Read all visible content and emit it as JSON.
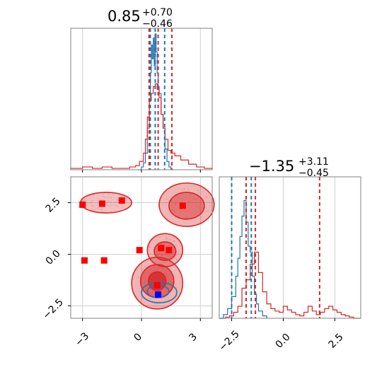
{
  "chart_data": {
    "type": "corner",
    "colors": {
      "red": "#d62728",
      "blue": "#1f77b4",
      "marker_red": "#ff0000",
      "marker_blue": "#0000ff",
      "grid": "#d0d0d0",
      "frame": "#808080"
    },
    "titles": [
      {
        "param": 0,
        "value": "0.85",
        "upper": "+0.70",
        "lower": "−0.46"
      },
      {
        "param": 1,
        "value": "−1.35",
        "upper": "+3.11",
        "lower": "−0.45"
      }
    ],
    "param0": {
      "xlim": [
        -3.6,
        3.6
      ],
      "ticks": [
        -3,
        0,
        3
      ],
      "tick_labels": [
        "−3",
        "0",
        "3"
      ],
      "grid": true,
      "quantiles_red": [
        0.39,
        0.85,
        1.55
      ],
      "quantiles_blue": [
        0.45,
        0.7,
        1.18
      ],
      "hist_red_x": [
        -3.6,
        -3.0,
        -2.5,
        -2.0,
        -1.5,
        -1.0,
        -0.6,
        -0.3,
        -0.1,
        0.1,
        0.2,
        0.3,
        0.4,
        0.5,
        0.6,
        0.7,
        0.8,
        0.9,
        1.0,
        1.1,
        1.2,
        1.35,
        1.5,
        1.7,
        2.0,
        2.4,
        2.8,
        3.2,
        3.6
      ],
      "hist_red_y": [
        0.01,
        0.02,
        0.01,
        0.02,
        0.01,
        0.01,
        0.02,
        0.03,
        0.06,
        0.12,
        0.22,
        0.38,
        0.5,
        0.55,
        0.6,
        0.62,
        0.58,
        0.52,
        0.4,
        0.3,
        0.22,
        0.14,
        0.12,
        0.1,
        0.07,
        0.04,
        0.02,
        0.01,
        0.0
      ],
      "hist_blue_x": [
        -0.2,
        0.0,
        0.1,
        0.2,
        0.3,
        0.4,
        0.45,
        0.5,
        0.55,
        0.6,
        0.65,
        0.7,
        0.75,
        0.8,
        0.85,
        0.9,
        1.0,
        1.1,
        1.2,
        1.3,
        1.4,
        1.5
      ],
      "hist_blue_y": [
        0.0,
        0.02,
        0.05,
        0.12,
        0.3,
        0.5,
        0.7,
        0.9,
        0.8,
        0.95,
        0.75,
        0.98,
        0.85,
        0.7,
        0.6,
        0.55,
        0.4,
        0.3,
        0.15,
        0.06,
        0.02,
        0.0
      ]
    },
    "param1": {
      "ylim": [
        -3.1,
        3.75
      ],
      "ticks": [
        -2.5,
        0.0,
        2.5
      ],
      "y_tick_labels": [
        "−2.5",
        "0.0",
        "2.5"
      ],
      "x_tick_labels": [
        "−2.5",
        "0.0",
        "2.5"
      ],
      "grid": true,
      "quantiles_red": [
        -1.8,
        -1.35,
        1.76
      ],
      "quantiles_blue": [
        -2.5,
        -1.8,
        -1.55
      ],
      "hist_red_x": [
        -3.1,
        -2.8,
        -2.6,
        -2.4,
        -2.2,
        -2.0,
        -1.8,
        -1.6,
        -1.4,
        -1.2,
        -1.0,
        -0.8,
        -0.6,
        -0.4,
        -0.2,
        0.0,
        0.2,
        0.4,
        0.6,
        0.8,
        1.0,
        1.2,
        1.4,
        1.6,
        1.8,
        2.0,
        2.2,
        2.4,
        2.6,
        2.8,
        3.0,
        3.2,
        3.4,
        3.75
      ],
      "hist_red_y": [
        0.0,
        0.01,
        0.02,
        0.05,
        0.1,
        0.25,
        0.32,
        0.45,
        0.55,
        0.38,
        0.22,
        0.12,
        0.08,
        0.06,
        0.05,
        0.1,
        0.07,
        0.05,
        0.03,
        0.02,
        0.05,
        0.1,
        0.06,
        0.03,
        0.05,
        0.08,
        0.1,
        0.07,
        0.05,
        0.03,
        0.02,
        0.01,
        0.0,
        0.0
      ],
      "hist_blue_x": [
        -3.1,
        -2.9,
        -2.7,
        -2.5,
        -2.3,
        -2.2,
        -2.1,
        -2.0,
        -1.9,
        -1.8,
        -1.7,
        -1.6,
        -1.5,
        -1.4,
        -1.3,
        -1.2,
        -1.0,
        -0.8
      ],
      "hist_blue_y": [
        0.0,
        0.03,
        0.08,
        0.18,
        0.35,
        0.5,
        0.68,
        0.85,
        0.98,
        0.8,
        0.6,
        0.55,
        0.35,
        0.2,
        0.12,
        0.06,
        0.02,
        0.0
      ]
    },
    "markers_red": [
      [
        -2.0,
        2.45
      ],
      [
        -1.0,
        2.6
      ],
      [
        2.1,
        2.35
      ],
      [
        -2.9,
        -0.3
      ],
      [
        -1.9,
        -0.3
      ],
      [
        -0.1,
        0.2
      ],
      [
        1.0,
        0.3
      ],
      [
        1.4,
        0.2
      ],
      [
        0.8,
        -1.5
      ],
      [
        -3.0,
        2.4
      ]
    ],
    "markers_blue": [
      [
        0.85,
        -1.95
      ]
    ],
    "contours_red": [
      {
        "cx": 2.3,
        "cy": 2.4,
        "rx": 1.4,
        "ry": 1.05,
        "alpha": 0.35
      },
      {
        "cx": 2.3,
        "cy": 2.35,
        "rx": 0.9,
        "ry": 0.65,
        "alpha": 0.45
      },
      {
        "cx": -1.8,
        "cy": 2.5,
        "rx": 1.3,
        "ry": 0.5,
        "alpha": 0.3
      },
      {
        "cx": 1.2,
        "cy": 0.2,
        "rx": 0.9,
        "ry": 0.8,
        "alpha": 0.35
      },
      {
        "cx": 1.2,
        "cy": 0.15,
        "rx": 0.55,
        "ry": 0.45,
        "alpha": 0.5
      },
      {
        "cx": 0.8,
        "cy": -1.4,
        "rx": 1.3,
        "ry": 1.25,
        "alpha": 0.35
      },
      {
        "cx": 0.8,
        "cy": -1.3,
        "rx": 0.85,
        "ry": 0.8,
        "alpha": 0.55
      },
      {
        "cx": 0.8,
        "cy": -1.3,
        "rx": 0.45,
        "ry": 0.45,
        "alpha": 0.8
      }
    ],
    "contours_blue": [
      {
        "cx": 0.9,
        "cy": -1.85,
        "rx": 0.9,
        "ry": 0.5
      },
      {
        "cx": 0.85,
        "cy": -1.8,
        "rx": 0.55,
        "ry": 0.3
      }
    ]
  }
}
